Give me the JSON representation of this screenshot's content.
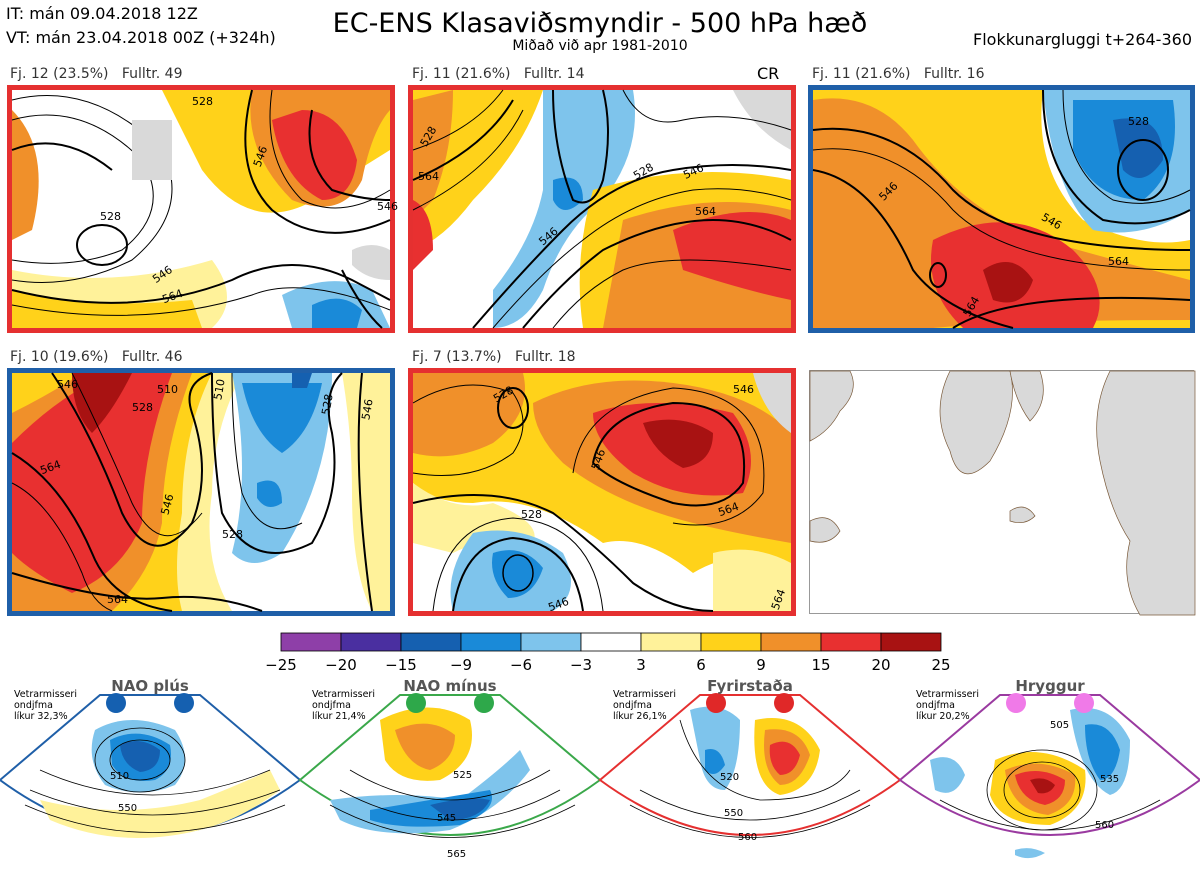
{
  "header": {
    "init_line": "IT: mán 09.04.2018 12Z",
    "valid_line": "VT: mán 23.04.2018 00Z  (+324h)",
    "title": "EC-ENS Klasaviðsmyndir - 500 hPa hæð",
    "subtitle": "Miðað við apr 1981-2010",
    "window": "Flokkunargluggi t+264-360"
  },
  "clusters": [
    {
      "label": "Fj. 12 (23.5%)   Fulltr. 49",
      "border": "#e53030",
      "contours": [
        "528",
        "546",
        "546",
        "564",
        "546",
        "528"
      ]
    },
    {
      "label": "Fj. 11 (21.6%)   Fulltr. 14",
      "border": "#e53030",
      "marker": "CR",
      "contours": [
        "528",
        "546",
        "564",
        "546",
        "564",
        "528"
      ]
    },
    {
      "label": "Fj. 11 (21.6%)   Fulltr. 16",
      "border": "#1f5fa8",
      "contours": [
        "528",
        "546",
        "546",
        "564",
        "564"
      ]
    },
    {
      "label": "Fj. 10 (19.6%)   Fulltr. 46",
      "border": "#1f5fa8",
      "contours": [
        "546",
        "528",
        "510",
        "510",
        "528",
        "564",
        "546",
        "528",
        "546",
        "564"
      ]
    },
    {
      "label": "Fj. 7 (13.7%)   Fulltr. 18",
      "border": "#e53030",
      "contours": [
        "546",
        "528",
        "546",
        "564",
        "528",
        "546",
        "564"
      ]
    }
  ],
  "colorbar": {
    "colors": [
      "#8e3fa8",
      "#4a2fa0",
      "#1560b0",
      "#1a8ad8",
      "#7ec4ec",
      "#ffffff",
      "#fff29a",
      "#ffd21a",
      "#f0902a",
      "#e83030",
      "#a81212"
    ],
    "ticks": [
      "−25",
      "−20",
      "−15",
      "−9",
      "−6",
      "−3",
      "3",
      "6",
      "9",
      "15",
      "20",
      "25"
    ]
  },
  "regimes": [
    {
      "name": "NAO plús",
      "info": [
        "Vetrarmisseri",
        "ondjfma",
        "líkur 32,3%"
      ],
      "border": "#1f5fa8",
      "dot": "#1560b0",
      "contours": [
        "510",
        "550"
      ]
    },
    {
      "name": "NAO mínus",
      "info": [
        "Vetrarmisseri",
        "ondjfma",
        "líkur 21,4%"
      ],
      "border": "#3aa84a",
      "dot": "#2ea84a",
      "contours": [
        "525",
        "545",
        "565"
      ]
    },
    {
      "name": "Fyrirstaða",
      "info": [
        "Vetrarmisseri",
        "ondjfma",
        "líkur 26,1%"
      ],
      "border": "#e53030",
      "dot": "#e02828",
      "contours": [
        "520",
        "550",
        "560"
      ]
    },
    {
      "name": "Hryggur",
      "info": [
        "Vetrarmisseri",
        "ondjfma",
        "líkur 20,2%"
      ],
      "border": "#9a3aa0",
      "dot": "#f07ae8",
      "contours": [
        "505",
        "535",
        "560"
      ]
    }
  ]
}
